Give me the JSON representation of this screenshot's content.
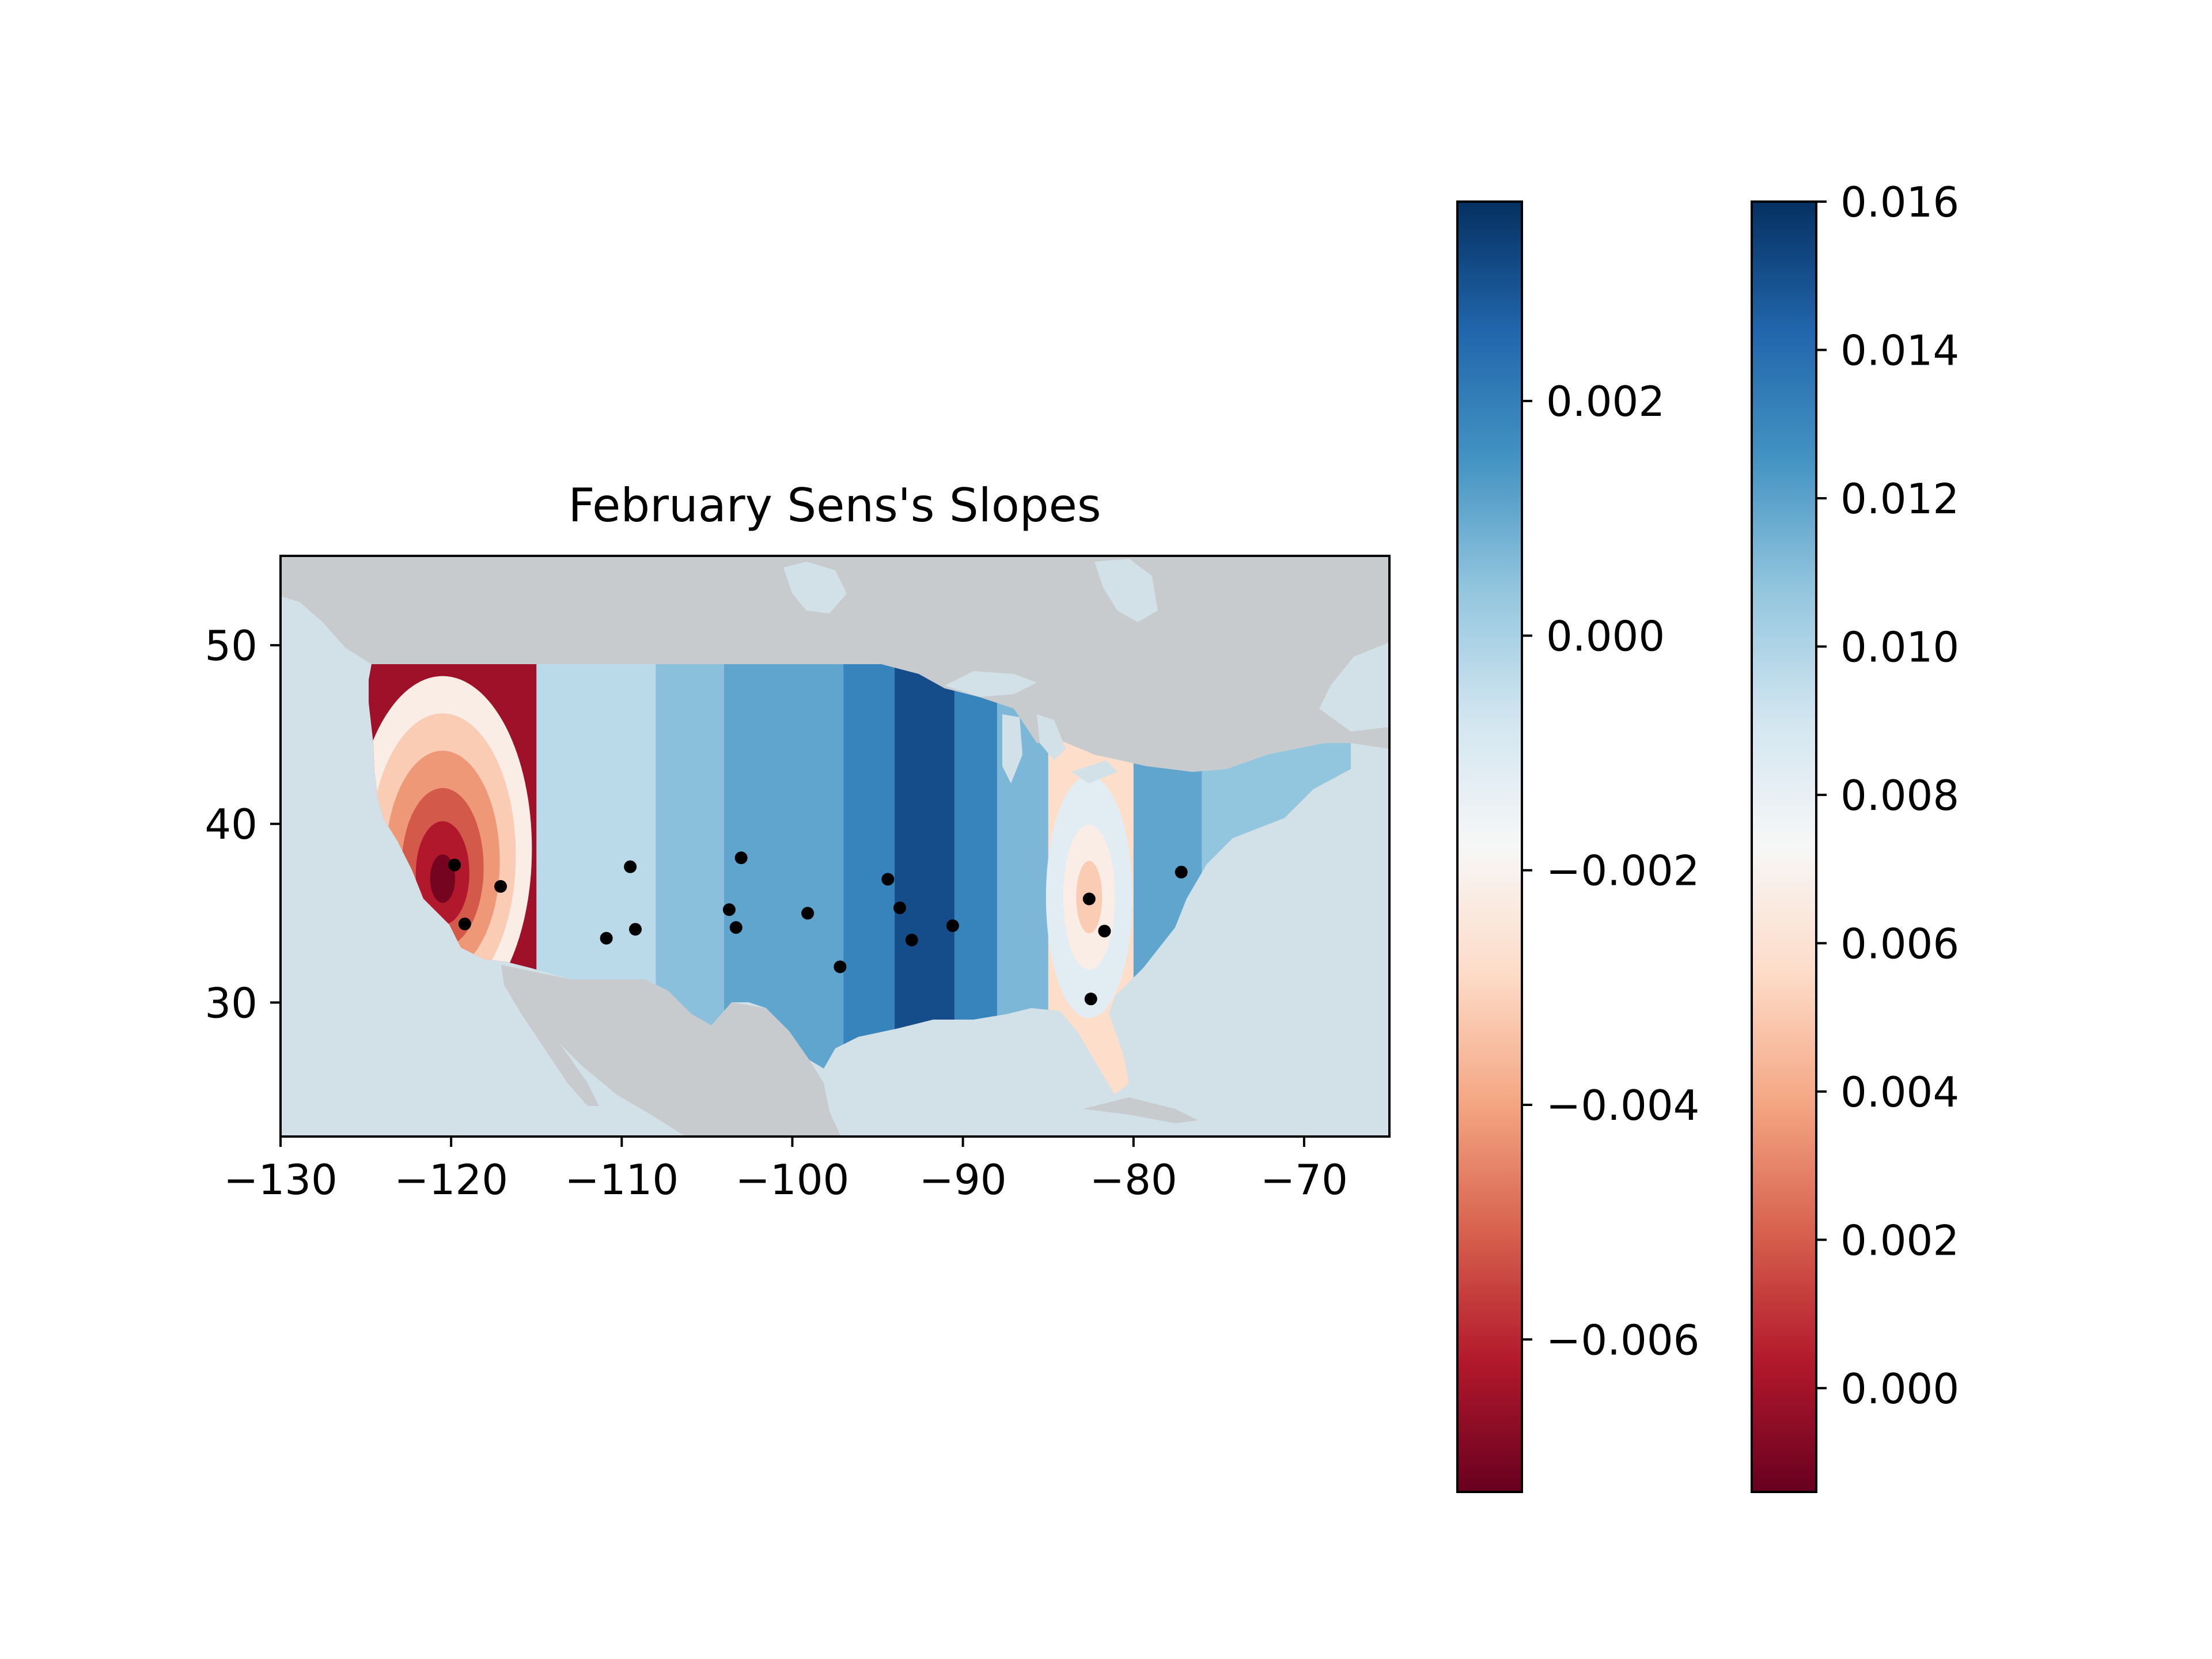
{
  "chart_data": {
    "type": "heatmap",
    "title": "February Sens's Slopes",
    "xlabel": "",
    "ylabel": "",
    "xlim": [
      -130,
      -65
    ],
    "ylim": [
      22.5,
      55
    ],
    "x_ticks": [
      "−130",
      "−120",
      "−110",
      "−100",
      "−90",
      "−80",
      "−70"
    ],
    "x_tick_values": [
      -130,
      -120,
      -110,
      -100,
      -90,
      -80,
      -70
    ],
    "y_ticks": [
      "30",
      "40",
      "50"
    ],
    "y_tick_values": [
      30,
      40,
      50
    ],
    "grid": false,
    "basemap": "North America coastlines, land gray, ocean light blue; contiguous US filled with interpolated contours",
    "contour_bands_by_longitude": [
      {
        "lon_from": -125,
        "lon_to": -115,
        "value": -0.0065,
        "note": "red hotspot near (-120.5, 38)"
      },
      {
        "lon_from": -115,
        "lon_to": -108,
        "value": -0.0003
      },
      {
        "lon_from": -108,
        "lon_to": -104,
        "value": 0.0005
      },
      {
        "lon_from": -104,
        "lon_to": -97,
        "value": 0.0011
      },
      {
        "lon_from": -97,
        "lon_to": -94,
        "value": 0.0019
      },
      {
        "lon_from": -94,
        "lon_to": -90.5,
        "value": 0.0031
      },
      {
        "lon_from": -90.5,
        "lon_to": -88,
        "value": 0.0019
      },
      {
        "lon_from": -88,
        "lon_to": -85,
        "value": 0.0007
      },
      {
        "lon_from": -85,
        "lon_to": -80,
        "value": -0.0028,
        "note": "orange hotspot near (-82.5, 36)"
      },
      {
        "lon_from": -80,
        "lon_to": -76,
        "value": 0.0011
      },
      {
        "lon_from": -76,
        "lon_to": -66,
        "value": 0.0004
      }
    ],
    "stations": [
      {
        "lon": -119.8,
        "lat": 37.7
      },
      {
        "lon": -119.2,
        "lat": 34.4
      },
      {
        "lon": -117.1,
        "lat": 36.5
      },
      {
        "lon": -109.5,
        "lat": 37.6
      },
      {
        "lon": -110.9,
        "lat": 33.6
      },
      {
        "lon": -109.2,
        "lat": 34.1
      },
      {
        "lon": -103.0,
        "lat": 38.1
      },
      {
        "lon": -103.7,
        "lat": 35.2
      },
      {
        "lon": -103.3,
        "lat": 34.2
      },
      {
        "lon": -99.1,
        "lat": 35.0
      },
      {
        "lon": -97.2,
        "lat": 32.0
      },
      {
        "lon": -94.4,
        "lat": 36.9
      },
      {
        "lon": -93.7,
        "lat": 35.3
      },
      {
        "lon": -93.0,
        "lat": 33.5
      },
      {
        "lon": -90.6,
        "lat": 34.3
      },
      {
        "lon": -82.6,
        "lat": 35.8
      },
      {
        "lon": -81.7,
        "lat": 34.0
      },
      {
        "lon": -82.5,
        "lat": 30.2
      },
      {
        "lon": -77.2,
        "lat": 37.3
      }
    ],
    "colorbars": [
      {
        "colormap": "RdBu",
        "min": -0.0073,
        "max": 0.0037,
        "ticks": [
          "0.002",
          "0.000",
          "−0.002",
          "−0.004",
          "−0.006"
        ],
        "tick_values": [
          0.002,
          0.0,
          -0.002,
          -0.004,
          -0.006
        ]
      },
      {
        "colormap": "RdBu",
        "min": -0.0014,
        "max": 0.016,
        "ticks": [
          "0.016",
          "0.014",
          "0.012",
          "0.010",
          "0.008",
          "0.006",
          "0.004",
          "0.002",
          "0.000"
        ],
        "tick_values": [
          0.016,
          0.014,
          0.012,
          0.01,
          0.008,
          0.006,
          0.004,
          0.002,
          0.0
        ]
      }
    ],
    "colors": {
      "land": "#c8cbcd",
      "ocean": "#d2e0e8",
      "station_marker": "#000000",
      "colormap_stops": [
        "#67001f",
        "#b2182b",
        "#d6604d",
        "#f4a582",
        "#fddbc7",
        "#f7f7f7",
        "#d1e5f0",
        "#92c5de",
        "#4393c3",
        "#2166ac",
        "#053061"
      ]
    }
  }
}
